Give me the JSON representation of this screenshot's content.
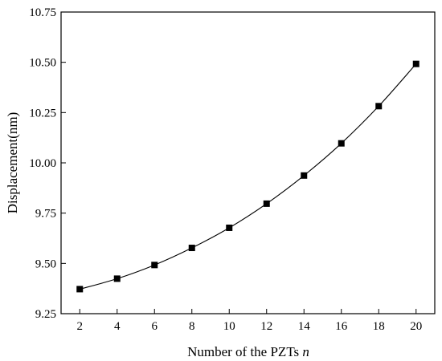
{
  "chart_data": {
    "type": "line",
    "title": "",
    "xlabel": "Number of the PZTs",
    "xlabel_variable": "n",
    "ylabel": "Displacement(nm)",
    "xlim": [
      1,
      21
    ],
    "ylim": [
      9.25,
      10.75
    ],
    "x_ticks": [
      2,
      4,
      6,
      8,
      10,
      12,
      14,
      16,
      18,
      20
    ],
    "x_tick_labels": [
      "2",
      "4",
      "6",
      "8",
      "10",
      "12",
      "14",
      "16",
      "18",
      "20"
    ],
    "y_ticks": [
      9.25,
      9.5,
      9.75,
      10.0,
      10.25,
      10.5,
      10.75
    ],
    "y_tick_labels": [
      "9.25",
      "9.50",
      "9.75",
      "10.00",
      "10.25",
      "10.50",
      "10.75"
    ],
    "marker": "square",
    "line_color": "#000000",
    "marker_color": "#000000",
    "grid": false,
    "series": [
      {
        "x": [
          2,
          4,
          6,
          8,
          10,
          12,
          14,
          16,
          18,
          20
        ],
        "values": [
          9.372,
          9.424,
          9.492,
          9.577,
          9.677,
          9.797,
          9.937,
          10.097,
          10.282,
          10.492
        ]
      }
    ]
  }
}
